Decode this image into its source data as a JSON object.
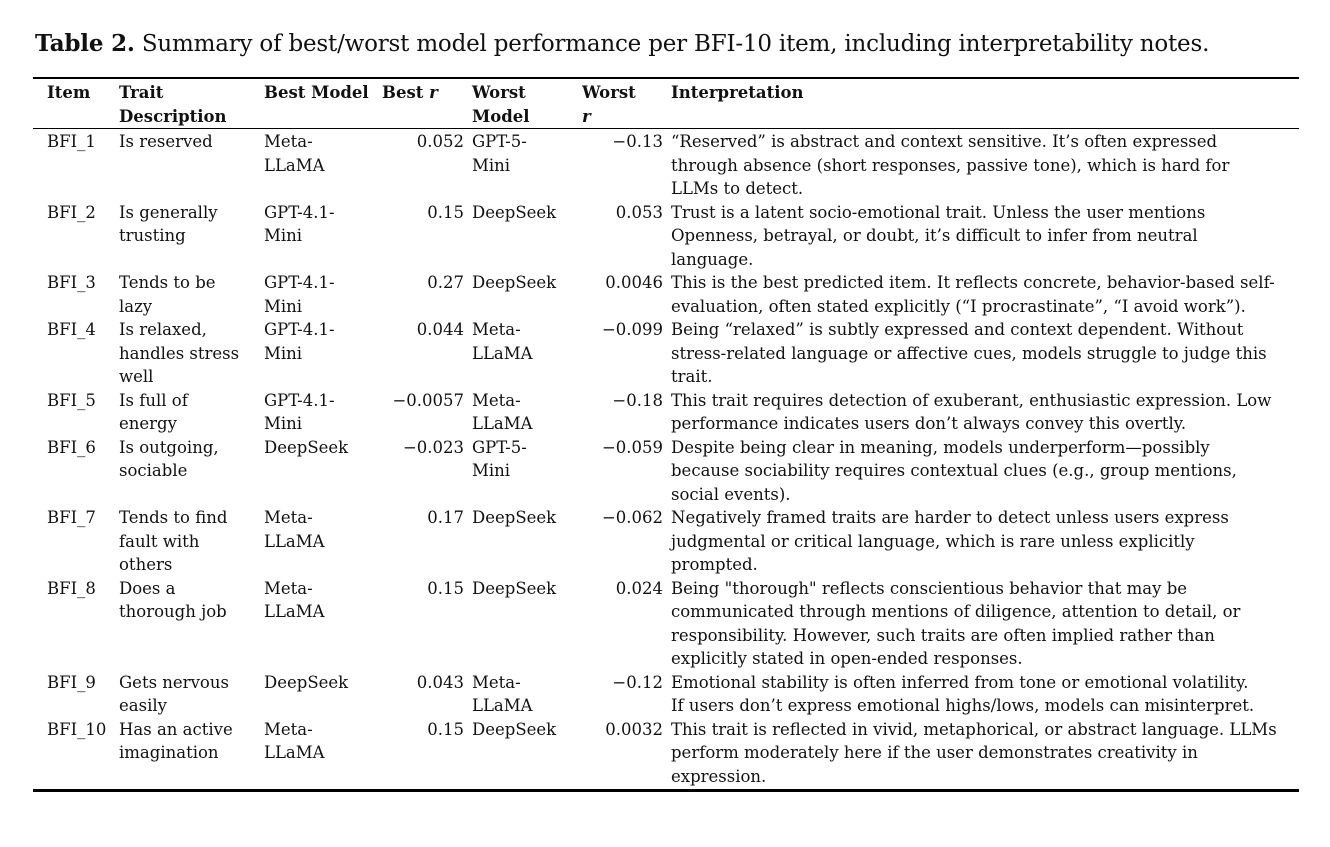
{
  "caption": {
    "label": "Table 2.",
    "text": "Summary of best/worst model performance per BFI-10 item, including interpretability notes."
  },
  "headers": {
    "item": "Item",
    "trait_line1": "Trait",
    "trait_line2": "Description",
    "best_model": "Best Model",
    "best_r_prefix": "Best ",
    "best_r_symbol": "r",
    "worst_model_line1": "Worst",
    "worst_model_line2": "Model",
    "worst_r_line1": "Worst",
    "worst_r_symbol": "r",
    "interpretation": "Interpretation"
  },
  "rows": [
    {
      "item": "BFI_1",
      "trait": [
        "Is reserved"
      ],
      "best_model": [
        "Meta-",
        "LLaMA"
      ],
      "best_r": "0.052",
      "worst_model": [
        "GPT-5-",
        "Mini"
      ],
      "worst_r": "−0.13",
      "interpretation": [
        "“Reserved” is abstract and context sensitive. It’s often expressed",
        "through absence (short responses, passive tone), which is hard for",
        "LLMs to detect."
      ]
    },
    {
      "item": "BFI_2",
      "trait": [
        "Is generally",
        "trusting"
      ],
      "best_model": [
        "GPT-4.1-",
        "Mini"
      ],
      "best_r": "0.15",
      "worst_model": [
        "DeepSeek"
      ],
      "worst_r": "0.053",
      "interpretation": [
        "Trust is a latent socio-emotional trait. Unless the user mentions",
        "Openness, betrayal, or doubt, it’s difficult to infer from neutral",
        "language."
      ]
    },
    {
      "item": "BFI_3",
      "trait": [
        "Tends to be",
        "lazy"
      ],
      "best_model": [
        "GPT-4.1-",
        "Mini"
      ],
      "best_r": "0.27",
      "worst_model": [
        "DeepSeek"
      ],
      "worst_r": "0.0046",
      "interpretation": [
        "This is the best predicted item. It reflects concrete, behavior-based self-",
        "evaluation, often stated explicitly (“I procrastinate”, “I avoid work”)."
      ]
    },
    {
      "item": "BFI_4",
      "trait": [
        "Is relaxed,",
        "handles stress",
        "well"
      ],
      "best_model": [
        "GPT-4.1-",
        "Mini"
      ],
      "best_r": "0.044",
      "worst_model": [
        "Meta-",
        "LLaMA"
      ],
      "worst_r": "−0.099",
      "interpretation": [
        "Being “relaxed” is subtly expressed and context dependent. Without",
        "stress-related language or affective cues, models struggle to judge this",
        "trait."
      ]
    },
    {
      "item": "BFI_5",
      "trait": [
        "Is full of",
        "energy"
      ],
      "best_model": [
        "GPT-4.1-",
        "Mini"
      ],
      "best_r": "−0.0057",
      "worst_model": [
        "Meta-",
        "LLaMA"
      ],
      "worst_r": "−0.18",
      "interpretation": [
        "This trait requires detection of exuberant, enthusiastic expression. Low",
        "performance indicates users don’t always convey this overtly."
      ]
    },
    {
      "item": "BFI_6",
      "trait": [
        "Is outgoing,",
        "sociable"
      ],
      "best_model": [
        "DeepSeek"
      ],
      "best_r": "−0.023",
      "worst_model": [
        "GPT-5-",
        "Mini"
      ],
      "worst_r": "−0.059",
      "interpretation": [
        "Despite being clear in meaning, models underperform—possibly",
        "because sociability requires contextual clues (e.g., group mentions,",
        "social events)."
      ]
    },
    {
      "item": "BFI_7",
      "trait": [
        "Tends to find",
        "fault with",
        "others"
      ],
      "best_model": [
        "Meta-",
        "LLaMA"
      ],
      "best_r": "0.17",
      "worst_model": [
        "DeepSeek"
      ],
      "worst_r": "−0.062",
      "interpretation": [
        "Negatively framed traits are harder to detect unless users express",
        "judgmental or critical language, which is rare unless explicitly",
        "prompted."
      ]
    },
    {
      "item": "BFI_8",
      "trait": [
        "Does a",
        "thorough job"
      ],
      "best_model": [
        "Meta-",
        "LLaMA"
      ],
      "best_r": "0.15",
      "worst_model": [
        "DeepSeek"
      ],
      "worst_r": "0.024",
      "interpretation": [
        "Being \"thorough\" reflects conscientious behavior that may be",
        "communicated through mentions of diligence, attention to detail, or",
        "responsibility. However, such traits are often implied rather than",
        "explicitly stated in open-ended responses."
      ]
    },
    {
      "item": "BFI_9",
      "trait": [
        "Gets nervous",
        "easily"
      ],
      "best_model": [
        "DeepSeek"
      ],
      "best_r": "0.043",
      "worst_model": [
        "Meta-",
        "LLaMA"
      ],
      "worst_r": "−0.12",
      "interpretation": [
        "Emotional stability is often inferred from tone or emotional volatility.",
        "If users don’t express emotional highs/lows, models can misinterpret."
      ]
    },
    {
      "item": "BFI_10",
      "trait": [
        "Has an active",
        "imagination"
      ],
      "best_model": [
        "Meta-",
        "LLaMA"
      ],
      "best_r": "0.15",
      "worst_model": [
        "DeepSeek"
      ],
      "worst_r": "0.0032",
      "interpretation": [
        "This trait is reflected in vivid, metaphorical, or abstract language. LLMs",
        "perform moderately here if the user demonstrates creativity in",
        "expression."
      ]
    }
  ]
}
